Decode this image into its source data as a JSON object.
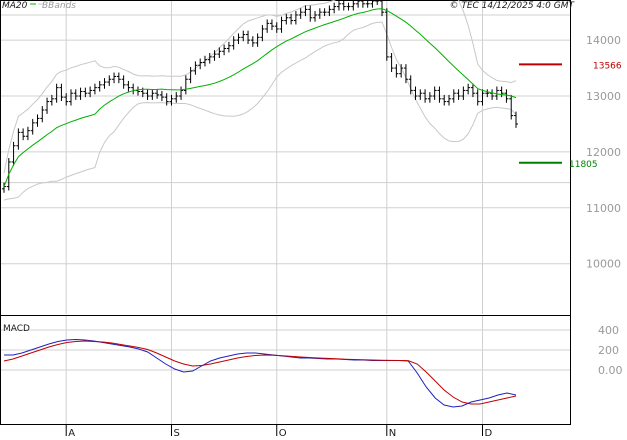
{
  "header": {
    "ma_label": "MA20",
    "bb_label": "BBands",
    "copyright": "© TEC 14/12/2025 4:0 GMT"
  },
  "macd_panel": {
    "title": "MACD"
  },
  "colors": {
    "candle": "#000000",
    "ma20": "#00b000",
    "bbands": "#c8c8c8",
    "macd_line": "#2020c0",
    "signal_line": "#c00000",
    "grid": "#d0d0d0",
    "resistance": "#c00000",
    "support": "#008000"
  },
  "chart_data": [
    {
      "type": "candlestick",
      "x_ticks": [
        "A",
        "S",
        "O",
        "N",
        "D"
      ],
      "y_ticks": [
        "14000",
        "13000",
        "12000",
        "11000",
        "10000"
      ],
      "ylim": [
        9100,
        14700
      ],
      "levels": [
        {
          "name": "resistance",
          "value": 13566,
          "label": "13566"
        },
        {
          "name": "support",
          "value": 11805,
          "label": "11805"
        }
      ],
      "grid": true,
      "series": [
        {
          "name": "MA20",
          "type": "line"
        },
        {
          "name": "BBands",
          "type": "band"
        }
      ],
      "close": [
        11380,
        11820,
        12110,
        12350,
        12280,
        12380,
        12520,
        12600,
        12750,
        12900,
        12950,
        13150,
        12980,
        12900,
        13050,
        13000,
        13080,
        13050,
        13100,
        13150,
        13200,
        13250,
        13300,
        13350,
        13300,
        13200,
        13150,
        13100,
        13080,
        13050,
        13000,
        13050,
        13020,
        12980,
        12900,
        12950,
        13000,
        13100,
        13300,
        13450,
        13550,
        13600,
        13650,
        13700,
        13750,
        13800,
        13850,
        13900,
        14000,
        14050,
        14100,
        14000,
        13950,
        14050,
        14200,
        14300,
        14250,
        14200,
        14350,
        14400,
        14350,
        14450,
        14500,
        14550,
        14400,
        14450,
        14500,
        14500,
        14550,
        14600,
        14650,
        14600,
        14600,
        14650,
        14700,
        14650,
        14650,
        14700,
        14700,
        14500,
        13700,
        13500,
        13400,
        13500,
        13300,
        13100,
        13000,
        13050,
        12950,
        13000,
        13100,
        12950,
        12900,
        12950,
        13050,
        13000,
        13100,
        13150,
        13050,
        12900,
        13050,
        13050,
        13000,
        13100,
        13050,
        12950,
        12650,
        12500
      ]
    },
    {
      "type": "line",
      "title": "MACD",
      "y_ticks": [
        "400",
        "200",
        "0.00"
      ],
      "ylim": [
        -500,
        500
      ],
      "series": [
        {
          "name": "MACD",
          "values": [
            150,
            150,
            170,
            200,
            230,
            260,
            285,
            300,
            305,
            300,
            290,
            275,
            260,
            245,
            230,
            210,
            180,
            120,
            60,
            10,
            -20,
            -10,
            40,
            90,
            120,
            140,
            160,
            170,
            170,
            160,
            150,
            140,
            130,
            120,
            120,
            115,
            110,
            110,
            105,
            100,
            100,
            95,
            95,
            95,
            95,
            90,
            -30,
            -170,
            -280,
            -350,
            -370,
            -360,
            -320,
            -300,
            -280,
            -250,
            -230,
            -250
          ]
        },
        {
          "name": "Signal",
          "values": [
            90,
            110,
            140,
            170,
            200,
            230,
            255,
            275,
            285,
            290,
            285,
            280,
            270,
            255,
            240,
            225,
            205,
            170,
            130,
            90,
            60,
            40,
            45,
            60,
            80,
            100,
            120,
            135,
            145,
            150,
            148,
            142,
            136,
            130,
            125,
            120,
            116,
            112,
            108,
            105,
            102,
            100,
            98,
            96,
            95,
            94,
            60,
            -20,
            -110,
            -200,
            -270,
            -320,
            -340,
            -340,
            -320,
            -300,
            -280,
            -260
          ]
        }
      ]
    }
  ]
}
